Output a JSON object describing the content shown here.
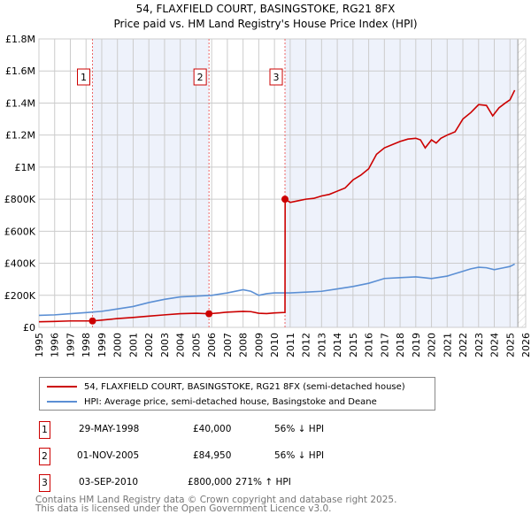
{
  "chart_data": {
    "type": "line",
    "title": "54, FLAXFIELD COURT, BASINGSTOKE, RG21 8FX",
    "subtitle": "Price paid vs. HM Land Registry's House Price Index (HPI)",
    "xlim": [
      1995,
      2026
    ],
    "ylim": [
      0,
      1800000
    ],
    "x_ticks": [
      "1995",
      "1996",
      "1997",
      "1998",
      "1999",
      "2000",
      "2001",
      "2002",
      "2003",
      "2004",
      "2005",
      "2006",
      "2007",
      "2008",
      "2009",
      "2010",
      "2011",
      "2012",
      "2013",
      "2014",
      "2015",
      "2016",
      "2017",
      "2018",
      "2019",
      "2020",
      "2021",
      "2022",
      "2023",
      "2024",
      "2025",
      "2026"
    ],
    "y_ticks": [
      {
        "v": 0,
        "label": "£0"
      },
      {
        "v": 200000,
        "label": "£200K"
      },
      {
        "v": 400000,
        "label": "£400K"
      },
      {
        "v": 600000,
        "label": "£600K"
      },
      {
        "v": 800000,
        "label": "£800K"
      },
      {
        "v": 1000000,
        "label": "£1M"
      },
      {
        "v": 1200000,
        "label": "£1.2M"
      },
      {
        "v": 1400000,
        "label": "£1.4M"
      },
      {
        "v": 1600000,
        "label": "£1.6M"
      },
      {
        "v": 1800000,
        "label": "£1.8M"
      }
    ],
    "grid": true,
    "series": [
      {
        "name": "54, FLAXFIELD COURT, BASINGSTOKE, RG21 8FX (semi-detached house)",
        "color": "#cc0000",
        "x": [
          1995,
          1996,
          1997,
          1998.41,
          1999,
          2000,
          2001,
          2002,
          2003,
          2004,
          2005,
          2005.83,
          2006.5,
          2007,
          2008,
          2008.5,
          2009,
          2009.5,
          2010,
          2010.67,
          2010.68,
          2011,
          2011.5,
          2012,
          2012.5,
          2013,
          2013.5,
          2014,
          2014.5,
          2015,
          2015.5,
          2016,
          2016.5,
          2017,
          2017.5,
          2018,
          2018.5,
          2019,
          2019.3,
          2019.6,
          2020,
          2020.3,
          2020.6,
          2021,
          2021.5,
          2022,
          2022.5,
          2023,
          2023.5,
          2023.9,
          2024.3,
          2024.7,
          2025,
          2025.3
        ],
        "y": [
          35000,
          37000,
          40000,
          40000,
          45000,
          55000,
          62000,
          70000,
          78000,
          85000,
          88000,
          84950,
          90000,
          95000,
          100000,
          98000,
          88000,
          86000,
          90000,
          93000,
          800000,
          780000,
          790000,
          800000,
          805000,
          820000,
          830000,
          850000,
          870000,
          920000,
          950000,
          990000,
          1080000,
          1120000,
          1140000,
          1160000,
          1175000,
          1180000,
          1170000,
          1120000,
          1170000,
          1150000,
          1180000,
          1200000,
          1220000,
          1300000,
          1340000,
          1390000,
          1385000,
          1320000,
          1370000,
          1400000,
          1420000,
          1480000
        ]
      },
      {
        "name": "HPI: Average price, semi-detached house, Basingstoke and Deane",
        "color": "#5b8fd4",
        "x": [
          1995,
          1996,
          1997,
          1998,
          1999,
          2000,
          2001,
          2002,
          2003,
          2004,
          2005,
          2006,
          2007,
          2008,
          2008.5,
          2009,
          2009.5,
          2010,
          2011,
          2012,
          2013,
          2014,
          2015,
          2016,
          2016.5,
          2017,
          2018,
          2019,
          2019.5,
          2020,
          2021,
          2022,
          2022.5,
          2023,
          2023.5,
          2024,
          2024.5,
          2025,
          2025.3
        ],
        "y": [
          75000,
          78000,
          85000,
          92000,
          100000,
          115000,
          130000,
          155000,
          175000,
          190000,
          195000,
          200000,
          215000,
          235000,
          225000,
          200000,
          210000,
          215000,
          215000,
          220000,
          225000,
          240000,
          255000,
          275000,
          290000,
          305000,
          310000,
          315000,
          310000,
          305000,
          320000,
          350000,
          365000,
          375000,
          372000,
          360000,
          370000,
          380000,
          395000
        ]
      }
    ],
    "sales": [
      {
        "n": "1",
        "x": 1998.41,
        "date": "29-MAY-1998",
        "price": "£40,000",
        "value": 40000,
        "hpi": "56% ↓ HPI"
      },
      {
        "n": "2",
        "x": 2005.83,
        "date": "01-NOV-2005",
        "price": "£84,950",
        "value": 84950,
        "hpi": "56% ↓ HPI"
      },
      {
        "n": "3",
        "x": 2010.67,
        "date": "03-SEP-2010",
        "price": "£800,000",
        "value": 800000,
        "hpi": "271% ↑ HPI"
      }
    ],
    "forecast_start": 2025.5
  },
  "footer": [
    "Contains HM Land Registry data © Crown copyright and database right 2025.",
    "This data is licensed under the Open Government Licence v3.0."
  ]
}
